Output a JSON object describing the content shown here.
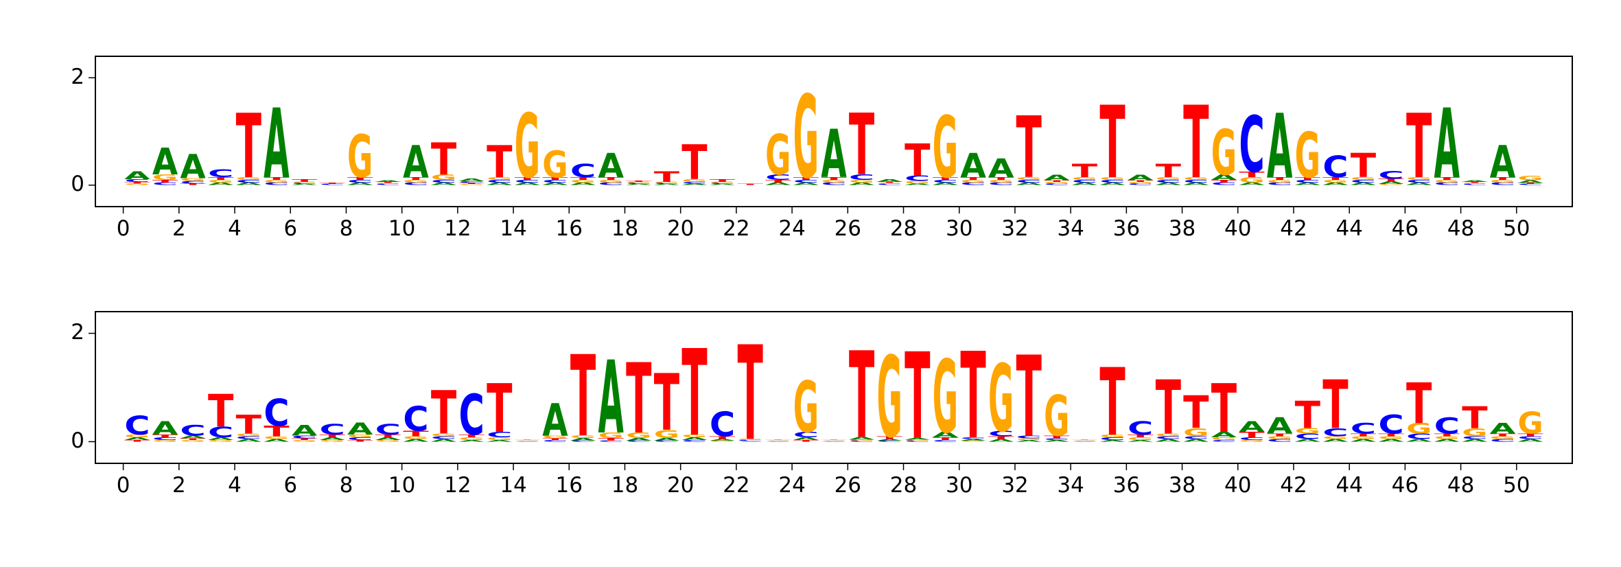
{
  "chart_data": [
    {
      "type": "logo",
      "x": [
        0,
        1,
        2,
        3,
        4,
        5,
        6,
        7,
        8,
        9,
        10,
        11,
        12,
        13,
        14,
        15,
        16,
        17,
        18,
        19,
        20,
        21,
        22,
        23,
        24,
        25,
        26,
        27,
        28,
        29,
        30,
        31,
        32,
        33,
        34,
        35,
        36,
        37,
        38,
        39,
        40,
        41,
        42,
        43,
        44,
        45,
        46,
        47,
        48,
        49,
        50
      ],
      "xlim": [
        -1,
        52
      ],
      "ylim": [
        -0.4,
        2.4
      ],
      "xticks": [
        0,
        2,
        4,
        6,
        8,
        10,
        12,
        14,
        16,
        18,
        20,
        22,
        24,
        26,
        28,
        30,
        32,
        34,
        36,
        38,
        40,
        42,
        44,
        46,
        48,
        50
      ],
      "yticks": [
        0,
        2
      ],
      "series": [
        {
          "name": "A",
          "color": "#008000",
          "values": [
            0.15,
            0.5,
            0.45,
            0.05,
            0.05,
            1.3,
            0.02,
            0,
            0.05,
            0.03,
            0.6,
            0.05,
            0.05,
            0.05,
            0.05,
            0.05,
            0.05,
            0.45,
            0.02,
            0.02,
            0.03,
            0.02,
            0,
            0.05,
            0.05,
            0.9,
            0.05,
            0.05,
            0.03,
            0.05,
            0.45,
            0.35,
            0.05,
            0.1,
            0.05,
            0.05,
            0.1,
            0.05,
            0.05,
            0.1,
            0.05,
            1.2,
            0.05,
            0.05,
            0.05,
            0.05,
            0.05,
            1.3,
            0.03,
            0.6,
            0.05
          ]
        },
        {
          "name": "C",
          "color": "#0000ff",
          "values": [
            0.05,
            0.05,
            0.05,
            0.15,
            0.05,
            0.05,
            0.02,
            0.02,
            0.05,
            0.02,
            0.05,
            0.05,
            0.03,
            0.05,
            0.05,
            0.05,
            0.25,
            0.05,
            0.02,
            0.02,
            0.03,
            0.02,
            0,
            0.1,
            0.05,
            0.05,
            0.1,
            0.02,
            0.1,
            0.05,
            0.05,
            0.05,
            0.05,
            0.03,
            0.05,
            0.05,
            0.03,
            0.05,
            0.05,
            0.05,
            1.05,
            0.05,
            0.05,
            0.4,
            0.05,
            0.15,
            0.05,
            0.05,
            0.02,
            0.05,
            0.02
          ]
        },
        {
          "name": "G",
          "color": "#ffa500",
          "values": [
            0.03,
            0.1,
            0.05,
            0.05,
            0.05,
            0.05,
            0.02,
            0,
            0.8,
            0.02,
            0.05,
            0.1,
            0.02,
            0.05,
            1.2,
            0.5,
            0.05,
            0.05,
            0.02,
            0.02,
            0.05,
            0.02,
            0,
            0.75,
            1.55,
            0.05,
            0.05,
            0.02,
            0.05,
            1.15,
            0.05,
            0.05,
            0.05,
            0.03,
            0.05,
            0.05,
            0.03,
            0.05,
            0.05,
            0.85,
            0.1,
            0.05,
            0.85,
            0.05,
            0.05,
            0.02,
            0.05,
            0.05,
            0.02,
            0.05,
            0.08
          ]
        },
        {
          "name": "T",
          "color": "#ff0000",
          "values": [
            0.03,
            0.05,
            0.03,
            0.05,
            1.2,
            0.05,
            0.05,
            0.02,
            0.05,
            0.02,
            0.05,
            0.6,
            0.02,
            0.6,
            0.05,
            0.05,
            0.05,
            0.05,
            0.02,
            0.2,
            0.65,
            0.05,
            0.02,
            0.05,
            0.05,
            0.05,
            1.15,
            0.02,
            0.6,
            0.05,
            0.05,
            0.05,
            1.15,
            0.03,
            0.25,
            1.35,
            0.03,
            0.25,
            1.35,
            0.05,
            0.1,
            0.05,
            0.05,
            0.05,
            0.45,
            0.05,
            1.2,
            0.05,
            0.02,
            0.05,
            0.02
          ]
        }
      ]
    },
    {
      "type": "logo",
      "x": [
        0,
        1,
        2,
        3,
        4,
        5,
        6,
        7,
        8,
        9,
        10,
        11,
        12,
        13,
        14,
        15,
        16,
        17,
        18,
        19,
        20,
        21,
        22,
        23,
        24,
        25,
        26,
        27,
        28,
        29,
        30,
        31,
        32,
        33,
        34,
        35,
        36,
        37,
        38,
        39,
        40,
        41,
        42,
        43,
        44,
        45,
        46,
        47,
        48,
        49,
        50
      ],
      "xlim": [
        -1,
        52
      ],
      "ylim": [
        -0.4,
        2.4
      ],
      "xticks": [
        0,
        2,
        4,
        6,
        8,
        10,
        12,
        14,
        16,
        18,
        20,
        22,
        24,
        26,
        28,
        30,
        32,
        34,
        36,
        38,
        40,
        42,
        44,
        46,
        48,
        50
      ],
      "yticks": [
        0,
        2
      ],
      "series": [
        {
          "name": "A",
          "color": "#008000",
          "values": [
            0.05,
            0.25,
            0.05,
            0.05,
            0.05,
            0.05,
            0.2,
            0.05,
            0.22,
            0.05,
            0.05,
            0.05,
            0.03,
            0.03,
            0.01,
            0.6,
            0.05,
            1.35,
            0.05,
            0.05,
            0.05,
            0.03,
            0.01,
            0.01,
            0.05,
            0.01,
            0.05,
            0.03,
            0.03,
            0.1,
            0.03,
            0.05,
            0.03,
            0.03,
            0.01,
            0.03,
            0.03,
            0.05,
            0.05,
            0.1,
            0.2,
            0.3,
            0.05,
            0.05,
            0.05,
            0.05,
            0.05,
            0.05,
            0.05,
            0.2,
            0.05
          ]
        },
        {
          "name": "C",
          "color": "#0000ff",
          "values": [
            0.35,
            0.05,
            0.2,
            0.2,
            0.05,
            0.5,
            0.05,
            0.2,
            0.05,
            0.2,
            0.45,
            0.05,
            0.75,
            0.1,
            0.01,
            0.03,
            0.02,
            0.02,
            0.02,
            0.02,
            0.03,
            0.45,
            0.02,
            0.01,
            0.1,
            0.01,
            0.02,
            0.02,
            0.02,
            0.03,
            0.03,
            0.1,
            0.05,
            0.03,
            0.01,
            0.05,
            0.25,
            0.05,
            0.05,
            0.03,
            0.05,
            0.05,
            0.1,
            0.15,
            0.2,
            0.35,
            0.1,
            0.3,
            0.05,
            0.05,
            0.05
          ]
        },
        {
          "name": "G",
          "color": "#ffa500",
          "values": [
            0.05,
            0.03,
            0.03,
            0.03,
            0.05,
            0.05,
            0.03,
            0.03,
            0.05,
            0.03,
            0.05,
            0.05,
            0.05,
            0.05,
            0.01,
            0.05,
            0.05,
            0.1,
            0.1,
            0.15,
            0.05,
            0.02,
            0.02,
            0.01,
            0.95,
            0.01,
            0.02,
            1.5,
            0.02,
            1.35,
            0.02,
            1.25,
            0.03,
            0.75,
            0.01,
            0.05,
            0.05,
            0.05,
            0.15,
            0.05,
            0.03,
            0.05,
            0.1,
            0.05,
            0.05,
            0.05,
            0.2,
            0.05,
            0.15,
            0.05,
            0.4
          ]
        },
        {
          "name": "T",
          "color": "#ff0000",
          "values": [
            0.03,
            0.05,
            0.03,
            0.6,
            0.35,
            0.2,
            0.03,
            0.05,
            0.03,
            0.05,
            0.1,
            0.8,
            0.05,
            0.9,
            0.01,
            0.03,
            1.5,
            0.05,
            1.3,
            1.05,
            1.6,
            0.05,
            1.75,
            0.01,
            0.03,
            0.01,
            1.6,
            0.05,
            1.6,
            0.05,
            1.6,
            0.05,
            1.5,
            0.05,
            0.01,
            1.25,
            0.05,
            1.0,
            0.6,
            0.9,
            0.1,
            0.05,
            0.5,
            0.9,
            0.05,
            0.05,
            0.75,
            0.05,
            0.4,
            0.05,
            0.05
          ]
        }
      ]
    }
  ]
}
